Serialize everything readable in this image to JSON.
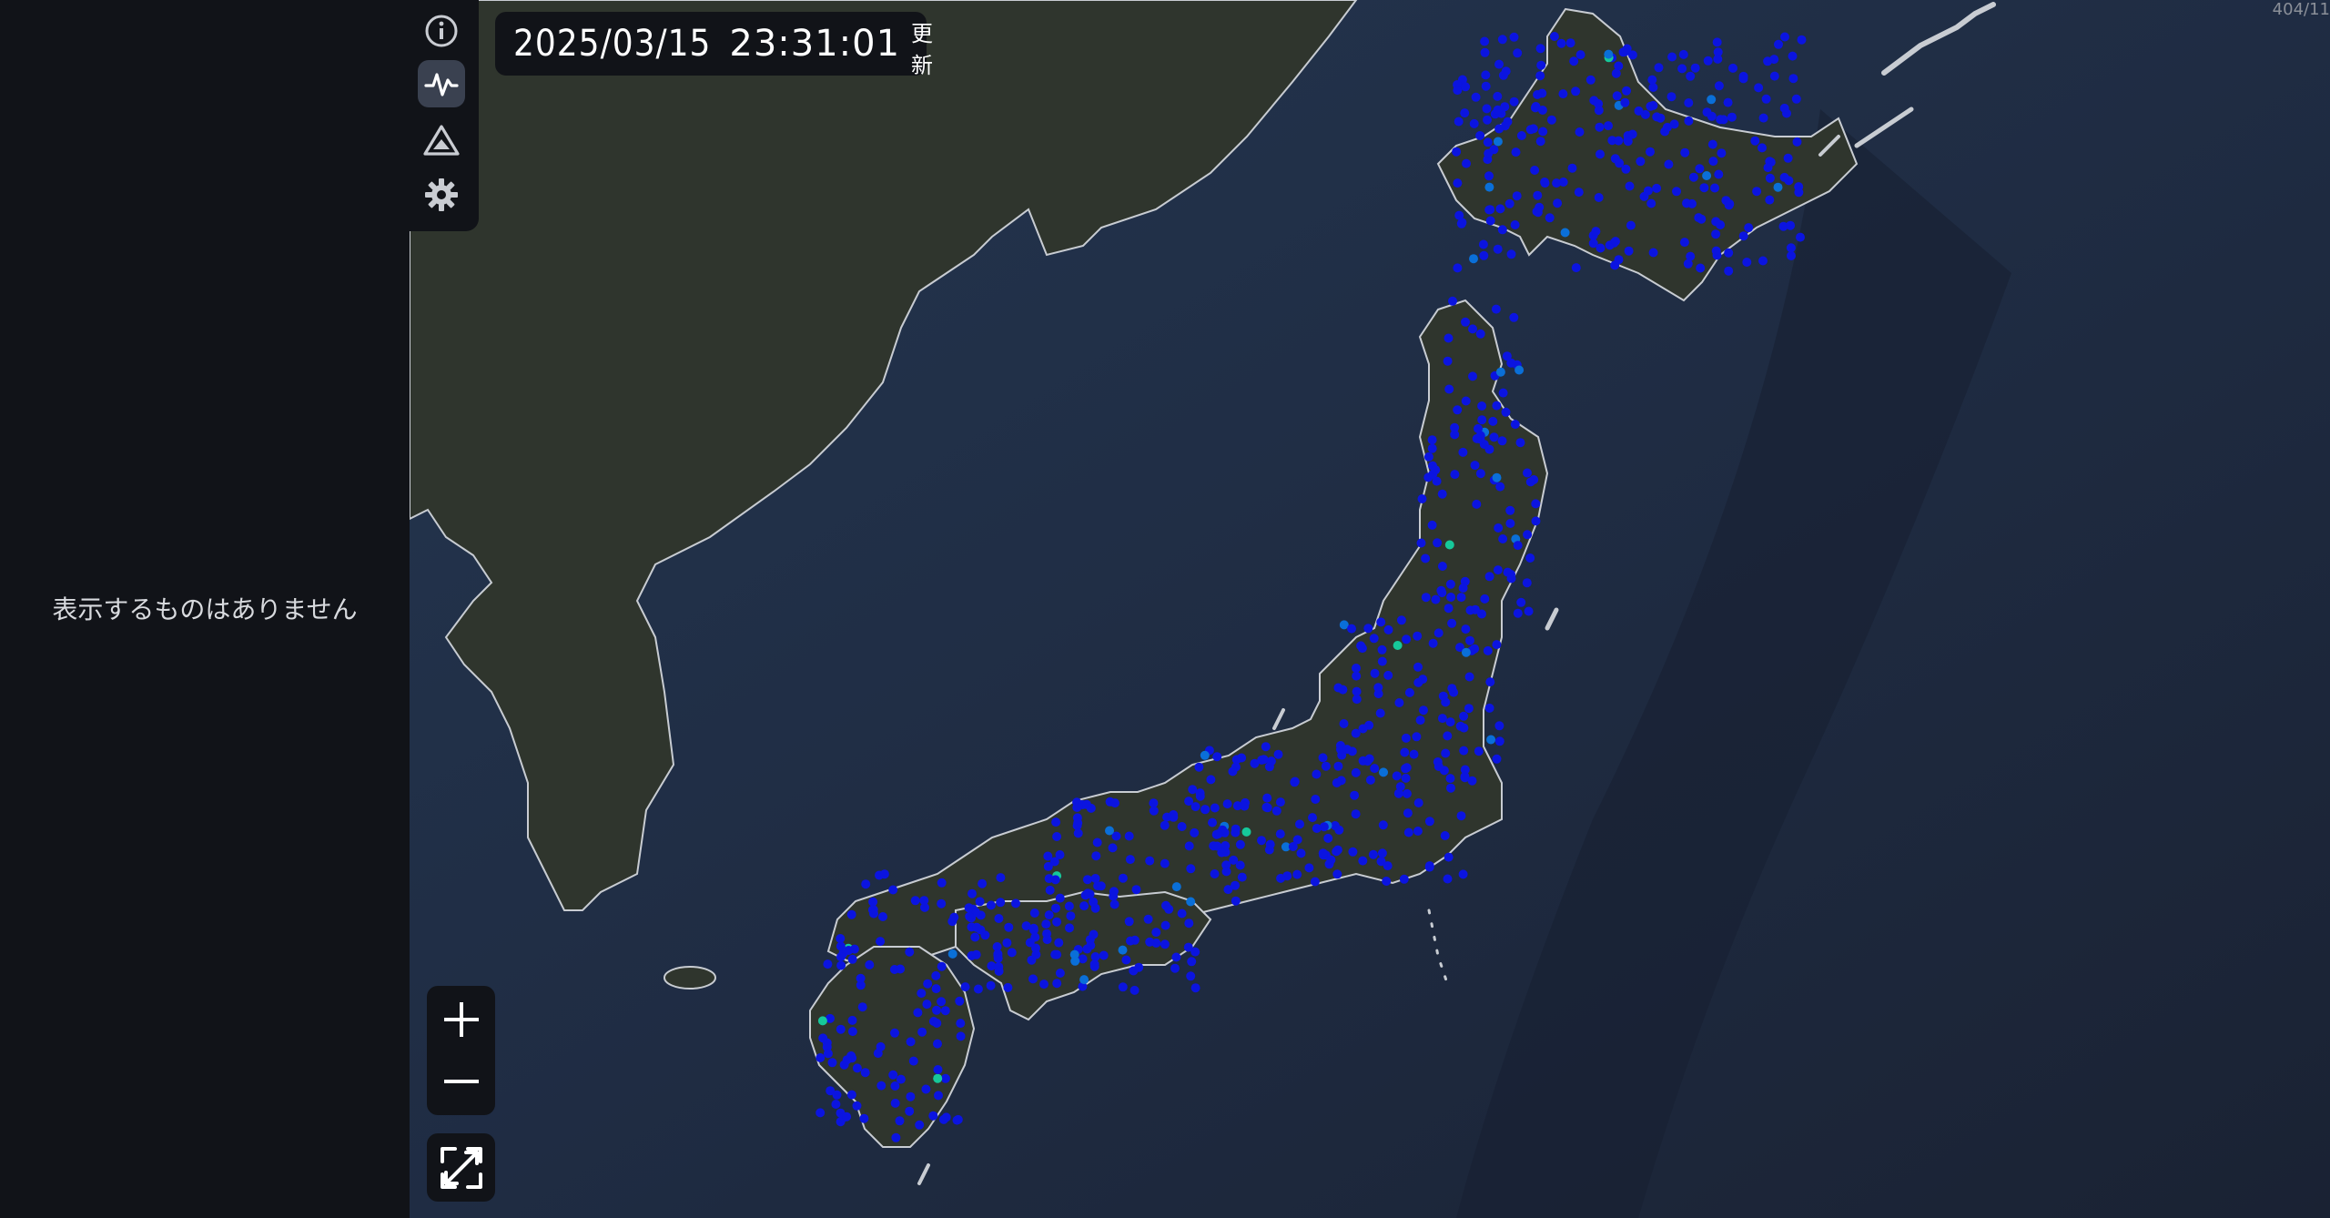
{
  "side_panel": {
    "empty_message": "表示するものはありません"
  },
  "toolbar": {
    "items": [
      {
        "name": "info",
        "icon": "info-icon",
        "active": false
      },
      {
        "name": "waveform",
        "icon": "waveform-icon",
        "active": true
      },
      {
        "name": "tsunami",
        "icon": "mountain-warning-icon",
        "active": false
      },
      {
        "name": "settings",
        "icon": "gear-icon",
        "active": false
      }
    ]
  },
  "timestamp": {
    "date": "2025/03/15",
    "time": "23:31:01",
    "label": "更新"
  },
  "corner_counter": "404/11",
  "zoom": {
    "in_icon": "plus-icon",
    "out_icon": "minus-icon"
  },
  "fullscreen": {
    "icon": "expand-icon"
  },
  "map": {
    "colors": {
      "sea": "#1d2a40",
      "sea_deep": "#1a2233",
      "land": "#2f352d",
      "border": "#c8ccd2",
      "station_low": "#0b14e0",
      "station_mid": "#0a6fd8",
      "station_high": "#16c89a"
    }
  }
}
